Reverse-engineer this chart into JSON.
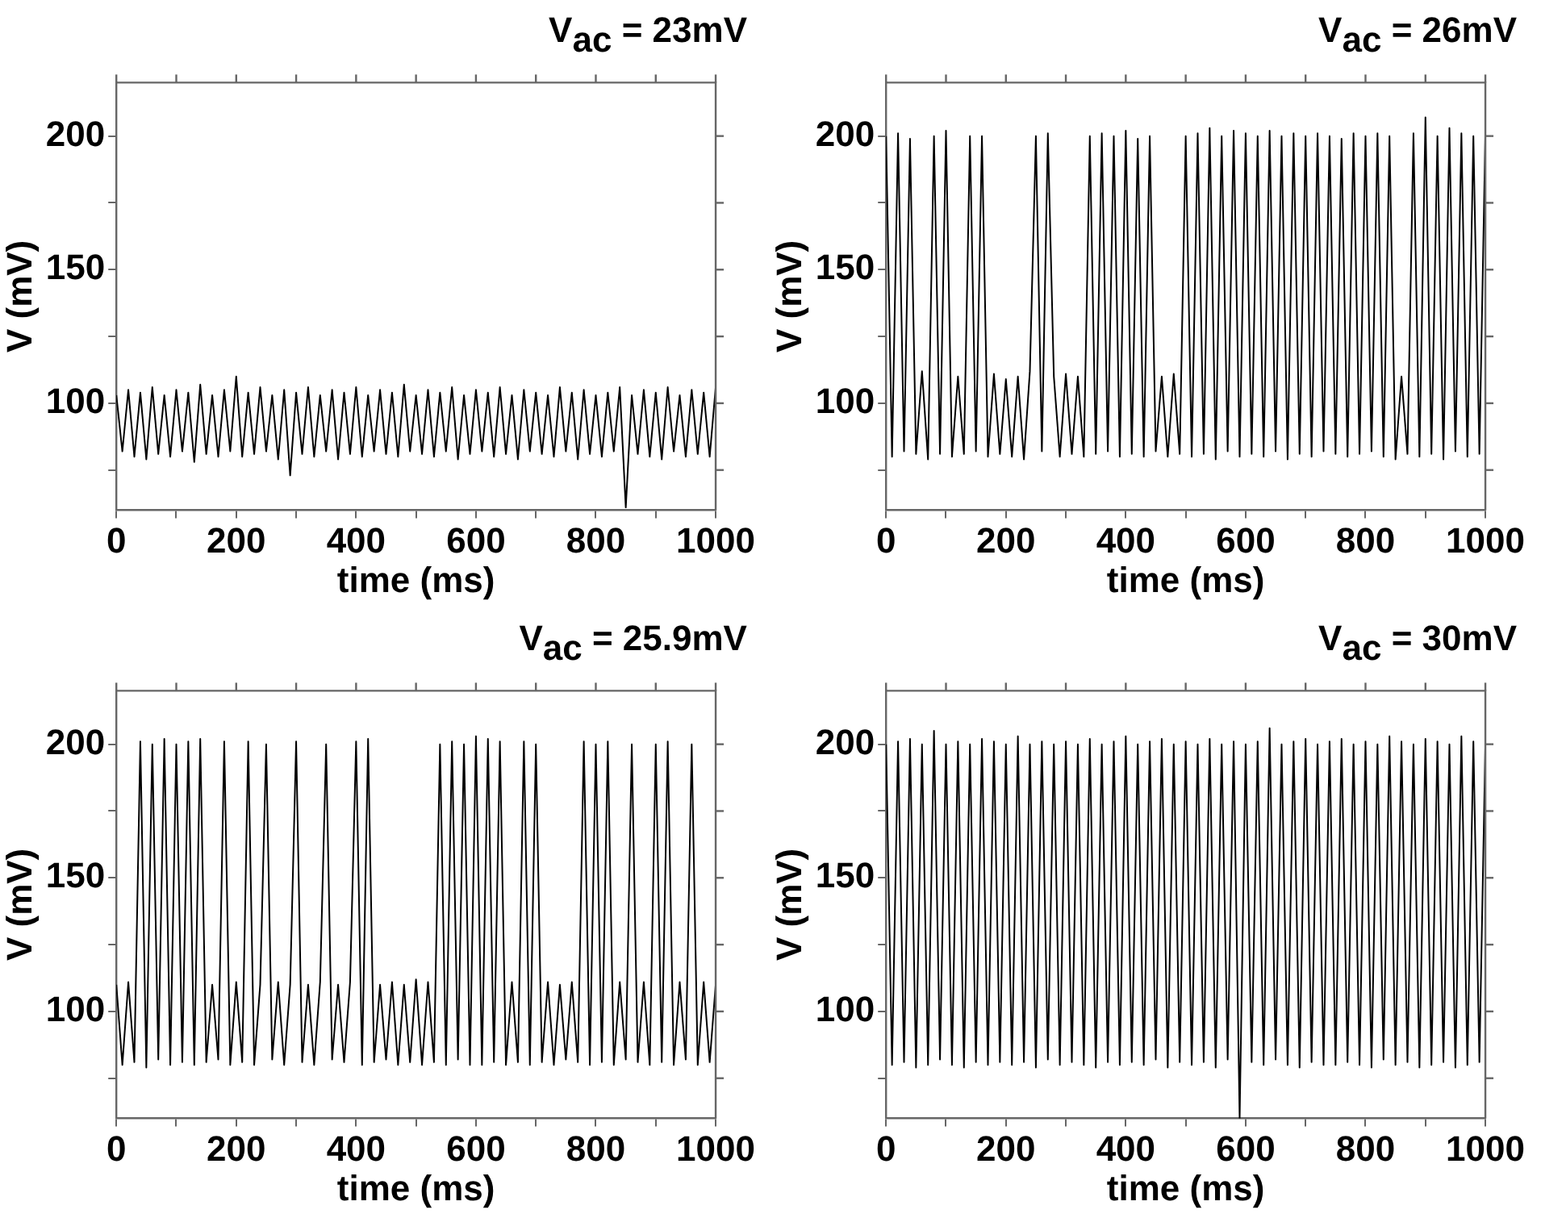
{
  "chart_data": [
    {
      "type": "line",
      "title": "V$_{ac}$ = 23mV",
      "xlabel": "time (ms)",
      "ylabel": "V (mV)",
      "marker": "none",
      "x": [
        0,
        10,
        20,
        30,
        40,
        50,
        60,
        70,
        80,
        90,
        100,
        110,
        120,
        130,
        140,
        150,
        160,
        170,
        180,
        190,
        200,
        210,
        220,
        230,
        240,
        250,
        260,
        270,
        280,
        290,
        300,
        310,
        320,
        330,
        340,
        350,
        360,
        370,
        380,
        390,
        400,
        410,
        420,
        430,
        440,
        450,
        460,
        470,
        480,
        490,
        500,
        510,
        520,
        530,
        540,
        550,
        560,
        570,
        580,
        590,
        600,
        610,
        620,
        630,
        640,
        650,
        660,
        670,
        680,
        690,
        700,
        710,
        720,
        730,
        740,
        750,
        760,
        770,
        780,
        790,
        800,
        810,
        820,
        830,
        840,
        850,
        860,
        870,
        880,
        890,
        900,
        910,
        920,
        930,
        940,
        950,
        960,
        970,
        980,
        990,
        1000
      ],
      "series": [
        {
          "color": "#000000",
          "values": [
            103,
            82,
            105,
            80,
            104,
            79,
            106,
            81,
            103,
            80,
            105,
            82,
            104,
            78,
            107,
            81,
            103,
            80,
            105,
            82,
            110,
            80,
            104,
            81,
            106,
            82,
            103,
            79,
            105,
            73,
            104,
            81,
            106,
            80,
            103,
            82,
            105,
            79,
            104,
            81,
            106,
            80,
            103,
            82,
            105,
            81,
            104,
            80,
            107,
            82,
            103,
            81,
            105,
            80,
            104,
            82,
            106,
            79,
            103,
            81,
            105,
            82,
            104,
            80,
            106,
            81,
            103,
            79,
            105,
            82,
            104,
            81,
            103,
            80,
            106,
            82,
            104,
            79,
            105,
            81,
            103,
            80,
            104,
            82,
            106,
            61,
            103,
            81,
            105,
            80,
            104,
            79,
            106,
            82,
            103,
            80,
            105,
            81,
            104,
            80,
            106
          ]
        }
      ],
      "xlim": [
        0,
        1000
      ],
      "xticks": [
        0,
        {
          "value": 100,
          "label": null
        },
        200,
        {
          "value": 300,
          "label": null
        },
        400,
        {
          "value": 500,
          "label": null
        },
        600,
        {
          "value": 700,
          "label": null
        },
        800,
        {
          "value": 900,
          "label": null
        },
        1000
      ],
      "ylim": [
        60,
        220
      ],
      "yticks": [
        {
          "value": 75,
          "label": null
        },
        100,
        {
          "value": 125,
          "label": null
        },
        150,
        {
          "value": 175,
          "label": null
        },
        200
      ]
    },
    {
      "type": "line",
      "title": "V$_{ac}$ = 26mV",
      "xlabel": "time (ms)",
      "ylabel": "V (mV)",
      "marker": "none",
      "x": [
        0,
        10,
        20,
        30,
        40,
        50,
        60,
        70,
        80,
        90,
        100,
        110,
        120,
        130,
        140,
        150,
        160,
        170,
        180,
        190,
        200,
        210,
        220,
        230,
        240,
        250,
        260,
        270,
        280,
        290,
        300,
        310,
        320,
        330,
        340,
        350,
        360,
        370,
        380,
        390,
        400,
        410,
        420,
        430,
        440,
        450,
        460,
        470,
        480,
        490,
        500,
        510,
        520,
        530,
        540,
        550,
        560,
        570,
        580,
        590,
        600,
        610,
        620,
        630,
        640,
        650,
        660,
        670,
        680,
        690,
        700,
        710,
        720,
        730,
        740,
        750,
        760,
        770,
        780,
        790,
        800,
        810,
        820,
        830,
        840,
        850,
        860,
        870,
        880,
        890,
        900,
        910,
        920,
        930,
        940,
        950,
        960,
        970,
        980,
        990,
        1000
      ],
      "series": [
        {
          "color": "#000000",
          "values": [
            200,
            80,
            201,
            82,
            199,
            81,
            112,
            79,
            200,
            81,
            202,
            80,
            110,
            81,
            200,
            82,
            200,
            80,
            111,
            81,
            109,
            80,
            110,
            79,
            112,
            200,
            82,
            201,
            110,
            80,
            111,
            81,
            110,
            80,
            200,
            81,
            201,
            82,
            200,
            80,
            202,
            81,
            199,
            80,
            200,
            82,
            110,
            80,
            111,
            81,
            200,
            80,
            201,
            81,
            203,
            79,
            200,
            82,
            202,
            80,
            201,
            81,
            200,
            80,
            202,
            82,
            200,
            79,
            201,
            81,
            200,
            80,
            201,
            82,
            200,
            81,
            199,
            80,
            201,
            81,
            200,
            82,
            201,
            80,
            200,
            79,
            110,
            81,
            201,
            80,
            207,
            81,
            200,
            79,
            203,
            82,
            201,
            80,
            200,
            81,
            201
          ]
        }
      ],
      "xlim": [
        0,
        1000
      ],
      "xticks": [
        0,
        {
          "value": 100,
          "label": null
        },
        200,
        {
          "value": 300,
          "label": null
        },
        400,
        {
          "value": 500,
          "label": null
        },
        600,
        {
          "value": 700,
          "label": null
        },
        800,
        {
          "value": 900,
          "label": null
        },
        1000
      ],
      "ylim": [
        60,
        220
      ],
      "yticks": [
        {
          "value": 75,
          "label": null
        },
        100,
        {
          "value": 125,
          "label": null
        },
        150,
        {
          "value": 175,
          "label": null
        },
        200
      ]
    },
    {
      "type": "line",
      "title": "V$_{ac}$ = 25.9mV",
      "xlabel": "time (ms)",
      "ylabel": "V (mV)",
      "marker": "none",
      "x": [
        0,
        10,
        20,
        30,
        40,
        50,
        60,
        70,
        80,
        90,
        100,
        110,
        120,
        130,
        140,
        150,
        160,
        170,
        180,
        190,
        200,
        210,
        220,
        230,
        240,
        250,
        260,
        270,
        280,
        290,
        300,
        310,
        320,
        330,
        340,
        350,
        360,
        370,
        380,
        390,
        400,
        410,
        420,
        430,
        440,
        450,
        460,
        470,
        480,
        490,
        500,
        510,
        520,
        530,
        540,
        550,
        560,
        570,
        580,
        590,
        600,
        610,
        620,
        630,
        640,
        650,
        660,
        670,
        680,
        690,
        700,
        710,
        720,
        730,
        740,
        750,
        760,
        770,
        780,
        790,
        800,
        810,
        820,
        830,
        840,
        850,
        860,
        870,
        880,
        890,
        900,
        910,
        920,
        930,
        940,
        950,
        960,
        970,
        980,
        990,
        1000
      ],
      "series": [
        {
          "color": "#000000",
          "values": [
            110,
            80,
            111,
            81,
            201,
            79,
            200,
            82,
            202,
            80,
            200,
            81,
            201,
            80,
            202,
            81,
            110,
            82,
            201,
            80,
            111,
            81,
            201,
            80,
            110,
            200,
            82,
            111,
            80,
            110,
            201,
            81,
            110,
            80,
            111,
            200,
            82,
            110,
            81,
            111,
            201,
            80,
            202,
            81,
            110,
            82,
            111,
            80,
            110,
            81,
            112,
            80,
            111,
            81,
            200,
            80,
            201,
            82,
            200,
            80,
            203,
            80,
            202,
            81,
            201,
            80,
            111,
            81,
            201,
            80,
            200,
            81,
            111,
            80,
            110,
            82,
            111,
            81,
            201,
            80,
            200,
            81,
            201,
            80,
            111,
            82,
            200,
            81,
            111,
            80,
            200,
            81,
            201,
            80,
            111,
            82,
            200,
            80,
            111,
            81,
            110
          ]
        }
      ],
      "xlim": [
        0,
        1000
      ],
      "xticks": [
        0,
        {
          "value": 100,
          "label": null
        },
        200,
        {
          "value": 300,
          "label": null
        },
        400,
        {
          "value": 500,
          "label": null
        },
        600,
        {
          "value": 700,
          "label": null
        },
        800,
        {
          "value": 900,
          "label": null
        },
        1000
      ],
      "ylim": [
        60,
        220
      ],
      "yticks": [
        {
          "value": 75,
          "label": null
        },
        100,
        {
          "value": 125,
          "label": null
        },
        150,
        {
          "value": 175,
          "label": null
        },
        200
      ]
    },
    {
      "type": "line",
      "title": "V$_{ac}$ = 30mV",
      "xlabel": "time (ms)",
      "ylabel": "V (mV)",
      "marker": "none",
      "x": [
        0,
        10,
        20,
        30,
        40,
        50,
        60,
        70,
        80,
        90,
        100,
        110,
        120,
        130,
        140,
        150,
        160,
        170,
        180,
        190,
        200,
        210,
        220,
        230,
        240,
        250,
        260,
        270,
        280,
        290,
        300,
        310,
        320,
        330,
        340,
        350,
        360,
        370,
        380,
        390,
        400,
        410,
        420,
        430,
        440,
        450,
        460,
        470,
        480,
        490,
        500,
        510,
        520,
        530,
        540,
        550,
        560,
        570,
        580,
        590,
        600,
        610,
        620,
        630,
        640,
        650,
        660,
        670,
        680,
        690,
        700,
        710,
        720,
        730,
        740,
        750,
        760,
        770,
        780,
        790,
        800,
        810,
        820,
        830,
        840,
        850,
        860,
        870,
        880,
        890,
        900,
        910,
        920,
        930,
        940,
        950,
        960,
        970,
        980,
        990,
        1000
      ],
      "series": [
        {
          "color": "#000000",
          "values": [
            200,
            80,
            201,
            81,
            202,
            79,
            200,
            80,
            205,
            82,
            200,
            80,
            201,
            79,
            200,
            81,
            202,
            80,
            201,
            81,
            200,
            80,
            203,
            81,
            200,
            79,
            201,
            82,
            200,
            80,
            201,
            81,
            200,
            80,
            202,
            79,
            200,
            81,
            201,
            80,
            203,
            81,
            200,
            80,
            201,
            82,
            202,
            79,
            200,
            81,
            201,
            80,
            200,
            81,
            202,
            79,
            200,
            82,
            201,
            60,
            200,
            81,
            201,
            80,
            206,
            82,
            200,
            80,
            201,
            79,
            202,
            81,
            200,
            80,
            201,
            80,
            202,
            81,
            200,
            80,
            201,
            79,
            200,
            82,
            203,
            80,
            201,
            81,
            200,
            79,
            202,
            80,
            201,
            81,
            200,
            79,
            203,
            80,
            201,
            81,
            200
          ]
        }
      ],
      "xlim": [
        0,
        1000
      ],
      "xticks": [
        0,
        {
          "value": 100,
          "label": null
        },
        200,
        {
          "value": 300,
          "label": null
        },
        400,
        {
          "value": 500,
          "label": null
        },
        600,
        {
          "value": 700,
          "label": null
        },
        800,
        {
          "value": 900,
          "label": null
        },
        1000
      ],
      "ylim": [
        60,
        220
      ],
      "yticks": [
        {
          "value": 75,
          "label": null
        },
        100,
        {
          "value": 125,
          "label": null
        },
        150,
        {
          "value": 175,
          "label": null
        },
        200
      ]
    }
  ]
}
